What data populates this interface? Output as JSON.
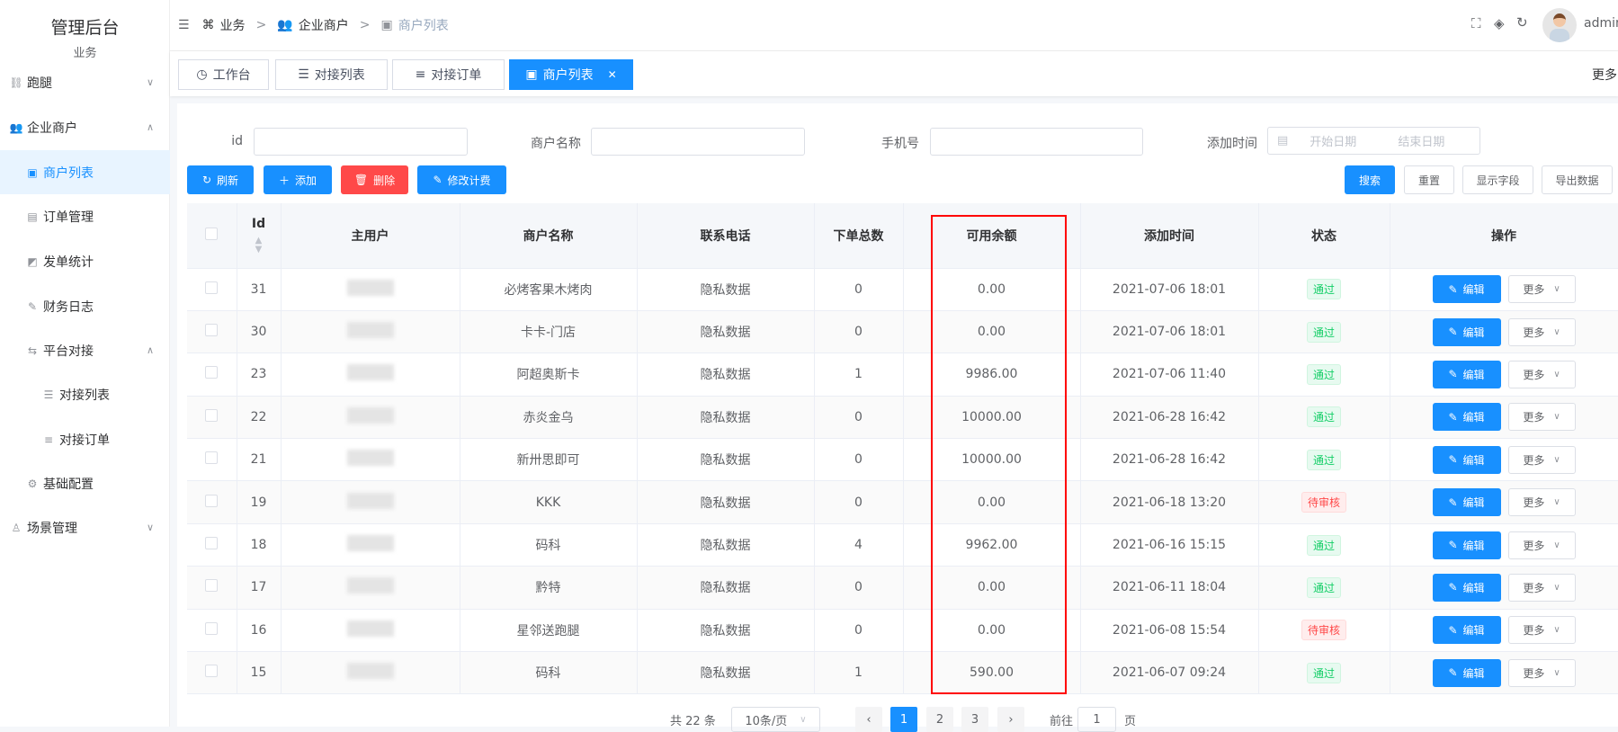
{
  "sidebar": {
    "title": "管理后台",
    "group": "业务",
    "items": [
      {
        "label": "跑腿",
        "icon": "run-icon",
        "chevron": "∨"
      },
      {
        "label": "企业商户",
        "icon": "users-icon",
        "chevron": "∧"
      },
      {
        "label": "商户列表",
        "icon": "contact-icon",
        "active": true
      },
      {
        "label": "订单管理",
        "icon": "document-icon"
      },
      {
        "label": "发单统计",
        "icon": "chart-icon"
      },
      {
        "label": "财务日志",
        "icon": "log-icon"
      },
      {
        "label": "平台对接",
        "icon": "swap-icon",
        "chevron": "∧"
      },
      {
        "label": "对接列表",
        "icon": "list-icon"
      },
      {
        "label": "对接订单",
        "icon": "order-list-icon"
      },
      {
        "label": "基础配置",
        "icon": "gear-icon"
      },
      {
        "label": "场景管理",
        "icon": "user-icon",
        "chevron": "∨"
      }
    ]
  },
  "header": {
    "breadcrumb": [
      "业务",
      "企业商户",
      "商户列表"
    ],
    "user": "admin"
  },
  "tabs": [
    {
      "label": "工作台"
    },
    {
      "label": "对接列表"
    },
    {
      "label": "对接订单"
    },
    {
      "label": "商户列表",
      "active": true
    }
  ],
  "tabs_more": "更多",
  "filters": {
    "id_label": "id",
    "name_label": "商户名称",
    "phone_label": "手机号",
    "time_label": "添加时间",
    "start_placeholder": "开始日期",
    "end_placeholder": "结束日期"
  },
  "toolbar": {
    "refresh": "刷新",
    "add": "添加",
    "delete": "删除",
    "edit_fee": "修改计费",
    "search": "搜索",
    "reset": "重置",
    "columns": "显示字段",
    "export": "导出数据"
  },
  "table": {
    "headers": [
      "Id",
      "主用户",
      "商户名称",
      "联系电话",
      "下单总数",
      "可用余额",
      "添加时间",
      "状态",
      "操作"
    ],
    "edit_label": "编辑",
    "more_label": "更多",
    "rows": [
      {
        "id": "31",
        "name": "必烤客果木烤肉",
        "phone": "隐私数据",
        "orders": "0",
        "balance": "0.00",
        "time": "2021-07-06 18:01",
        "status": "通过",
        "ok": true
      },
      {
        "id": "30",
        "name": "卡卡-门店",
        "phone": "隐私数据",
        "orders": "0",
        "balance": "0.00",
        "time": "2021-07-06 18:01",
        "status": "通过",
        "ok": true
      },
      {
        "id": "23",
        "name": "阿超奥斯卡",
        "phone": "隐私数据",
        "orders": "1",
        "balance": "9986.00",
        "time": "2021-07-06 11:40",
        "status": "通过",
        "ok": true
      },
      {
        "id": "22",
        "name": "赤炎金乌",
        "phone": "隐私数据",
        "orders": "0",
        "balance": "10000.00",
        "time": "2021-06-28 16:42",
        "status": "通过",
        "ok": true
      },
      {
        "id": "21",
        "name": "新卅思即可",
        "phone": "隐私数据",
        "orders": "0",
        "balance": "10000.00",
        "time": "2021-06-28 16:42",
        "status": "通过",
        "ok": true
      },
      {
        "id": "19",
        "name": "KKK",
        "phone": "隐私数据",
        "orders": "0",
        "balance": "0.00",
        "time": "2021-06-18 13:20",
        "status": "待审核",
        "ok": false
      },
      {
        "id": "18",
        "name": "码科",
        "phone": "隐私数据",
        "orders": "4",
        "balance": "9962.00",
        "time": "2021-06-16 15:15",
        "status": "通过",
        "ok": true
      },
      {
        "id": "17",
        "name": "黔特",
        "phone": "隐私数据",
        "orders": "0",
        "balance": "0.00",
        "time": "2021-06-11 18:04",
        "status": "通过",
        "ok": true
      },
      {
        "id": "16",
        "name": "星邻送跑腿",
        "phone": "隐私数据",
        "orders": "0",
        "balance": "0.00",
        "time": "2021-06-08 15:54",
        "status": "待审核",
        "ok": false
      },
      {
        "id": "15",
        "name": "码科",
        "phone": "隐私数据",
        "orders": "1",
        "balance": "590.00",
        "time": "2021-06-07 09:24",
        "status": "通过",
        "ok": true
      }
    ]
  },
  "pagination": {
    "total": "共 22 条",
    "page_size": "10条/页",
    "pages": [
      "1",
      "2",
      "3"
    ],
    "current": "1",
    "goto": "前往",
    "goto_value": "1",
    "page_unit": "页"
  },
  "colors": {
    "primary": "#1890ff",
    "danger": "#ff4949",
    "success": "#13ce66",
    "highlight": "#ff0000"
  }
}
